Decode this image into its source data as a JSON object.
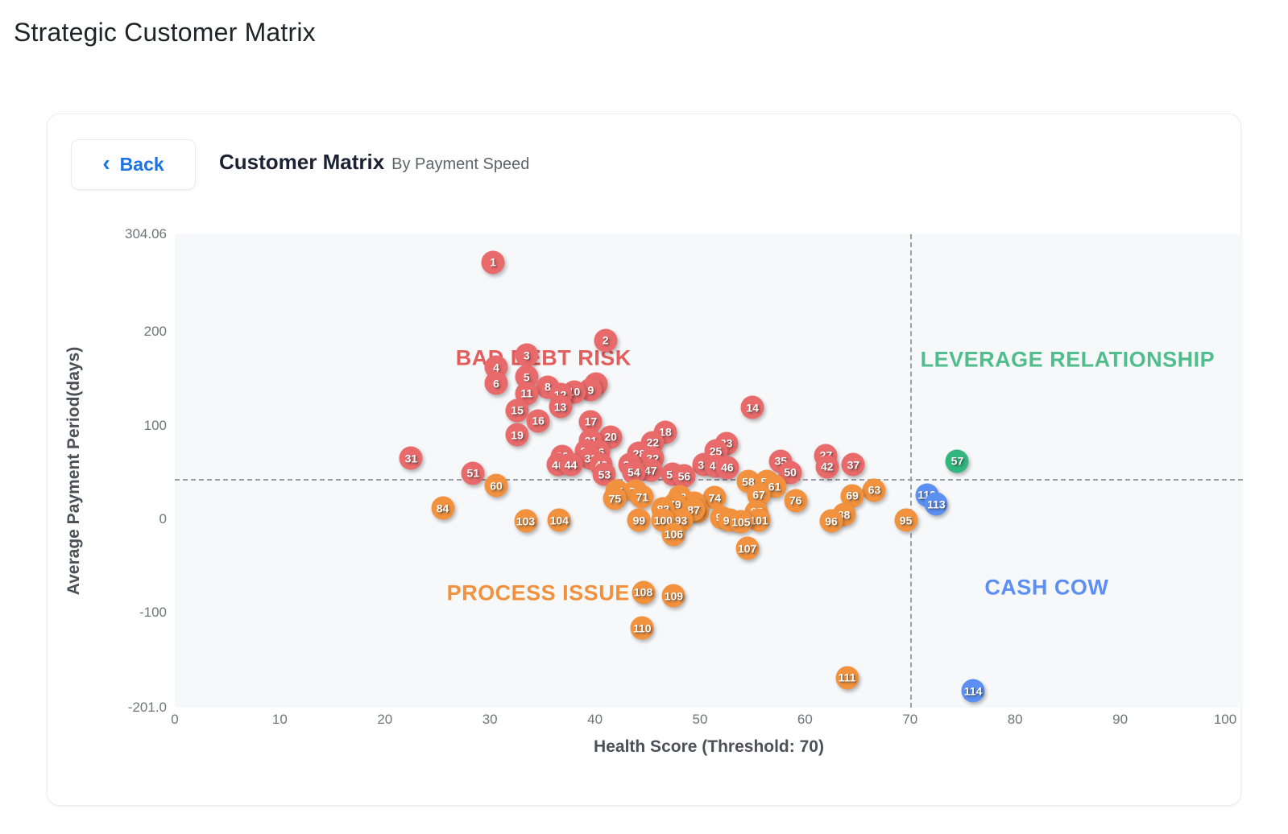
{
  "page": {
    "title": "Strategic Customer Matrix"
  },
  "card": {
    "back_chevron": "‹",
    "back_label": "Back",
    "heading": "Customer Matrix",
    "subheading": "By Payment Speed"
  },
  "chart_data": {
    "type": "scatter",
    "xlabel": "Health Score (Threshold: 70)",
    "ylabel": "Average Payment Period(days)",
    "xlim": [
      0,
      100
    ],
    "ylim": [
      -201.0,
      304.06
    ],
    "x_ticks": [
      0,
      10,
      20,
      30,
      40,
      50,
      60,
      70,
      80,
      90,
      100
    ],
    "y_ticks": [
      {
        "v": 304.06,
        "label": "304.06"
      },
      {
        "v": 200,
        "label": "200"
      },
      {
        "v": 100,
        "label": "100"
      },
      {
        "v": 0,
        "label": "0"
      },
      {
        "v": -100,
        "label": "-100"
      },
      {
        "v": -201.0,
        "label": "-201.0"
      }
    ],
    "x_threshold": 70,
    "y_threshold": 43,
    "grid_bg": "#f7f8fa",
    "threshold_line_color": "#9aa0a6",
    "groups": {
      "risk": "#e96a6a",
      "process": "#f2923e",
      "leverage": "#31b77d",
      "cashcow": "#5b8ff2"
    },
    "quadrant_labels": [
      {
        "id": "bad-debt-risk",
        "text": "BAD DEBT RISK",
        "color": "#e35d5d",
        "x": 35.1,
        "y": 172
      },
      {
        "id": "leverage-relationship",
        "text": "LEVERAGE RELATIONSHIP",
        "color": "#4fbd8c",
        "x": 85.0,
        "y": 170
      },
      {
        "id": "process-issue",
        "text": "PROCESS ISSUE",
        "color": "#f2913d",
        "x": 34.6,
        "y": -79
      },
      {
        "id": "cash-cow",
        "text": "CASH COW",
        "color": "#5c8ff5",
        "x": 83.0,
        "y": -73
      }
    ],
    "points": [
      {
        "id": 1,
        "x": 30.3,
        "y": 274,
        "g": "risk"
      },
      {
        "id": 2,
        "x": 41.0,
        "y": 191,
        "g": "risk"
      },
      {
        "id": 3,
        "x": 33.5,
        "y": 175,
        "g": "risk"
      },
      {
        "id": 4,
        "x": 30.6,
        "y": 162,
        "g": "risk"
      },
      {
        "id": 5,
        "x": 33.5,
        "y": 152,
        "g": "risk"
      },
      {
        "id": 6,
        "x": 30.6,
        "y": 145,
        "g": "risk"
      },
      {
        "id": 7,
        "x": 40.1,
        "y": 144,
        "g": "risk"
      },
      {
        "id": 8,
        "x": 35.5,
        "y": 141,
        "g": "risk"
      },
      {
        "id": 9,
        "x": 39.6,
        "y": 138,
        "g": "risk"
      },
      {
        "id": 10,
        "x": 38.0,
        "y": 136,
        "g": "risk"
      },
      {
        "id": 11,
        "x": 33.5,
        "y": 134,
        "g": "risk"
      },
      {
        "id": 12,
        "x": 36.7,
        "y": 133,
        "g": "risk"
      },
      {
        "id": 13,
        "x": 36.7,
        "y": 120,
        "g": "risk"
      },
      {
        "id": 14,
        "x": 55.0,
        "y": 119,
        "g": "risk"
      },
      {
        "id": 15,
        "x": 32.6,
        "y": 116,
        "g": "risk"
      },
      {
        "id": 16,
        "x": 34.6,
        "y": 105,
        "g": "risk"
      },
      {
        "id": 17,
        "x": 39.6,
        "y": 104,
        "g": "risk"
      },
      {
        "id": 18,
        "x": 46.7,
        "y": 93,
        "g": "risk"
      },
      {
        "id": 19,
        "x": 32.6,
        "y": 90,
        "g": "risk"
      },
      {
        "id": 20,
        "x": 41.5,
        "y": 88,
        "g": "risk"
      },
      {
        "id": 21,
        "x": 39.6,
        "y": 84,
        "g": "risk"
      },
      {
        "id": 22,
        "x": 45.5,
        "y": 82,
        "g": "risk"
      },
      {
        "id": 23,
        "x": 52.5,
        "y": 81,
        "g": "risk"
      },
      {
        "id": 24,
        "x": 39.2,
        "y": 73,
        "g": "risk"
      },
      {
        "id": 25,
        "x": 51.5,
        "y": 73,
        "g": "risk"
      },
      {
        "id": 26,
        "x": 40.3,
        "y": 72,
        "g": "risk"
      },
      {
        "id": 27,
        "x": 62.0,
        "y": 68,
        "g": "risk"
      },
      {
        "id": 28,
        "x": 44.2,
        "y": 70,
        "g": "risk"
      },
      {
        "id": 30,
        "x": 36.9,
        "y": 67,
        "g": "risk"
      },
      {
        "id": 31,
        "x": 22.5,
        "y": 65,
        "g": "risk"
      },
      {
        "id": 32,
        "x": 45.5,
        "y": 65,
        "g": "risk"
      },
      {
        "id": 33,
        "x": 39.6,
        "y": 65,
        "g": "risk"
      },
      {
        "id": 34,
        "x": 50.4,
        "y": 58,
        "g": "risk"
      },
      {
        "id": 35,
        "x": 57.7,
        "y": 62,
        "g": "risk"
      },
      {
        "id": 36,
        "x": 43.3,
        "y": 58,
        "g": "risk"
      },
      {
        "id": 37,
        "x": 64.6,
        "y": 58,
        "g": "risk"
      },
      {
        "id": 40,
        "x": 36.5,
        "y": 58,
        "g": "risk"
      },
      {
        "id": 42,
        "x": 62.1,
        "y": 56,
        "g": "risk"
      },
      {
        "id": 43,
        "x": 40.6,
        "y": 58,
        "g": "risk"
      },
      {
        "id": 44,
        "x": 37.7,
        "y": 58,
        "g": "risk"
      },
      {
        "id": 45,
        "x": 51.5,
        "y": 57,
        "g": "risk"
      },
      {
        "id": 46,
        "x": 52.6,
        "y": 55,
        "g": "risk"
      },
      {
        "id": 47,
        "x": 45.3,
        "y": 52,
        "g": "risk"
      },
      {
        "id": 50,
        "x": 58.6,
        "y": 50,
        "g": "risk"
      },
      {
        "id": 51,
        "x": 28.4,
        "y": 49,
        "g": "risk"
      },
      {
        "id": 53,
        "x": 40.9,
        "y": 48,
        "g": "risk"
      },
      {
        "id": 54,
        "x": 43.7,
        "y": 50,
        "g": "risk"
      },
      {
        "id": 55,
        "x": 47.4,
        "y": 48,
        "g": "risk"
      },
      {
        "id": 56,
        "x": 48.5,
        "y": 46,
        "g": "risk"
      },
      {
        "id": 57,
        "x": 74.5,
        "y": 62,
        "g": "leverage"
      },
      {
        "id": 58,
        "x": 54.6,
        "y": 40,
        "g": "process"
      },
      {
        "id": 59,
        "x": 56.4,
        "y": 40,
        "g": "process"
      },
      {
        "id": 60,
        "x": 30.6,
        "y": 36,
        "g": "process"
      },
      {
        "id": 61,
        "x": 57.1,
        "y": 35,
        "g": "process"
      },
      {
        "id": 63,
        "x": 66.6,
        "y": 31,
        "g": "process"
      },
      {
        "id": 65,
        "x": 42.1,
        "y": 30,
        "g": "process"
      },
      {
        "id": 67,
        "x": 55.6,
        "y": 26,
        "g": "process"
      },
      {
        "id": 69,
        "x": 64.5,
        "y": 25,
        "g": "process"
      },
      {
        "id": 70,
        "x": 43.9,
        "y": 30,
        "g": "process"
      },
      {
        "id": 71,
        "x": 44.5,
        "y": 24,
        "g": "process"
      },
      {
        "id": 73,
        "x": 48.1,
        "y": 24,
        "g": "process"
      },
      {
        "id": 74,
        "x": 51.4,
        "y": 23,
        "g": "process"
      },
      {
        "id": 75,
        "x": 41.9,
        "y": 22,
        "g": "process"
      },
      {
        "id": 76,
        "x": 59.1,
        "y": 20,
        "g": "process"
      },
      {
        "id": 78,
        "x": 49.5,
        "y": 17,
        "g": "process"
      },
      {
        "id": 79,
        "x": 47.6,
        "y": 16,
        "g": "process"
      },
      {
        "id": 80,
        "x": 49.8,
        "y": 9,
        "g": "process"
      },
      {
        "id": 83,
        "x": 46.5,
        "y": 11,
        "g": "process"
      },
      {
        "id": 84,
        "x": 25.5,
        "y": 12,
        "g": "process"
      },
      {
        "id": 85,
        "x": 55.4,
        "y": 8,
        "g": "process"
      },
      {
        "id": 87,
        "x": 49.4,
        "y": 10,
        "g": "process"
      },
      {
        "id": 88,
        "x": 63.7,
        "y": 5,
        "g": "process"
      },
      {
        "id": 90,
        "x": 52.1,
        "y": 2,
        "g": "process"
      },
      {
        "id": 91,
        "x": 52.8,
        "y": -1,
        "g": "process"
      },
      {
        "id": 93,
        "x": 48.2,
        "y": -1,
        "g": "process"
      },
      {
        "id": 95,
        "x": 69.6,
        "y": -1,
        "g": "process"
      },
      {
        "id": 96,
        "x": 62.5,
        "y": -2,
        "g": "process"
      },
      {
        "id": 99,
        "x": 44.2,
        "y": -1,
        "g": "process"
      },
      {
        "id": 100,
        "x": 46.5,
        "y": -1,
        "g": "process"
      },
      {
        "id": 101,
        "x": 55.6,
        "y": -1,
        "g": "process"
      },
      {
        "id": 103,
        "x": 33.4,
        "y": -2,
        "g": "process"
      },
      {
        "id": 104,
        "x": 36.6,
        "y": -1,
        "g": "process"
      },
      {
        "id": 105,
        "x": 53.9,
        "y": -3,
        "g": "process"
      },
      {
        "id": 106,
        "x": 47.5,
        "y": -16,
        "g": "process"
      },
      {
        "id": 107,
        "x": 54.5,
        "y": -31,
        "g": "process"
      },
      {
        "id": 108,
        "x": 44.6,
        "y": -78,
        "g": "process"
      },
      {
        "id": 109,
        "x": 47.5,
        "y": -82,
        "g": "process"
      },
      {
        "id": 110,
        "x": 44.5,
        "y": -116,
        "g": "process"
      },
      {
        "id": 111,
        "x": 64.0,
        "y": -169,
        "g": "process"
      },
      {
        "id": 112,
        "x": 71.6,
        "y": 26,
        "g": "cashcow"
      },
      {
        "id": 113,
        "x": 72.5,
        "y": 16,
        "g": "cashcow"
      },
      {
        "id": 114,
        "x": 76.0,
        "y": -183,
        "g": "cashcow"
      }
    ]
  }
}
